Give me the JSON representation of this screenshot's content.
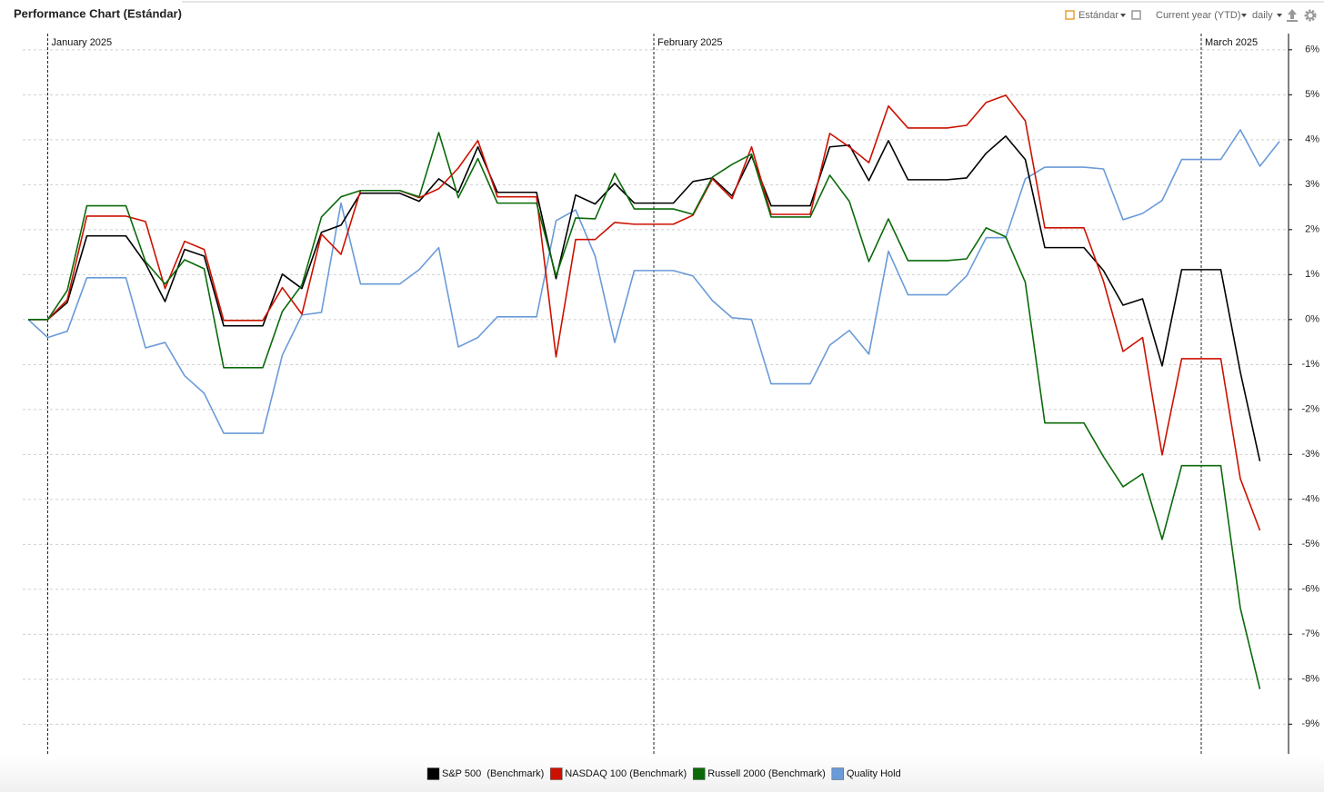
{
  "chart_data": {
    "type": "line",
    "title": "Performance Chart (Estándar)",
    "categories": [
      null,
      "January 2025",
      null,
      null,
      null,
      null,
      null,
      null,
      null,
      null,
      null,
      null,
      null,
      null,
      null,
      null,
      null,
      null,
      null,
      null,
      null,
      null,
      null,
      null,
      null,
      null,
      null,
      null,
      null,
      null,
      null,
      null,
      "February 2025",
      null,
      null,
      null,
      null,
      null,
      null,
      null,
      null,
      null,
      null,
      null,
      null,
      null,
      null,
      null,
      null,
      null,
      null,
      null,
      null,
      null,
      null,
      null,
      null,
      null,
      null,
      null,
      "March 2025",
      null,
      null,
      null,
      null
    ],
    "series": [
      {
        "name": "S&P 500  (Benchmark)",
        "color": "#000000",
        "values": [
          0,
          0,
          0.38,
          1.86,
          1.86,
          1.86,
          1.25,
          0.4,
          1.56,
          1.41,
          -0.14,
          -0.14,
          -0.14,
          1.01,
          0.69,
          1.94,
          2.1,
          2.81,
          2.81,
          2.81,
          2.63,
          3.13,
          2.83,
          3.84,
          2.83,
          2.83,
          2.83,
          0.91,
          2.77,
          2.57,
          3.03,
          2.59,
          2.59,
          2.59,
          3.07,
          3.15,
          2.75,
          3.64,
          2.53,
          2.53,
          2.53,
          3.84,
          3.88,
          3.09,
          3.98,
          3.11,
          3.11,
          3.11,
          3.15,
          3.7,
          4.08,
          3.56,
          1.6,
          1.6,
          1.6,
          1.09,
          0.32,
          0.46,
          -1.03,
          1.11,
          1.11,
          1.11,
          -1.17,
          -3.15,
          null
        ]
      },
      {
        "name": "NASDAQ 100 (Benchmark)",
        "color": "#cc1100",
        "values": [
          0,
          0,
          0.44,
          2.3,
          2.3,
          2.3,
          2.18,
          0.69,
          1.74,
          1.56,
          -0.02,
          -0.02,
          -0.02,
          0.71,
          0.12,
          1.9,
          1.45,
          2.87,
          2.87,
          2.87,
          2.71,
          2.91,
          3.37,
          3.98,
          2.73,
          2.73,
          2.73,
          -0.83,
          1.78,
          1.78,
          2.16,
          2.12,
          2.12,
          2.12,
          2.32,
          3.13,
          2.69,
          3.84,
          2.34,
          2.34,
          2.34,
          4.14,
          3.84,
          3.49,
          4.75,
          4.26,
          4.26,
          4.26,
          4.32,
          4.83,
          4.99,
          4.42,
          2.04,
          2.04,
          2.04,
          0.85,
          -0.71,
          -0.4,
          -3.01,
          -0.87,
          -0.87,
          -0.87,
          -3.54,
          -4.69,
          null
        ]
      },
      {
        "name": "Russell 2000 (Benchmark)",
        "color": "#0a6a0a",
        "values": [
          0,
          0,
          0.65,
          2.53,
          2.53,
          2.53,
          1.29,
          0.79,
          1.33,
          1.13,
          -1.07,
          -1.07,
          -1.07,
          0.18,
          0.77,
          2.28,
          2.73,
          2.87,
          2.87,
          2.87,
          2.73,
          4.16,
          2.71,
          3.58,
          2.59,
          2.59,
          2.59,
          0.97,
          2.26,
          2.24,
          3.25,
          2.46,
          2.46,
          2.46,
          2.34,
          3.17,
          3.45,
          3.68,
          2.28,
          2.28,
          2.28,
          3.21,
          2.63,
          1.29,
          2.24,
          1.31,
          1.31,
          1.31,
          1.35,
          2.04,
          1.84,
          0.83,
          -2.3,
          -2.3,
          -2.3,
          -3.05,
          -3.72,
          -3.43,
          -4.89,
          -3.25,
          -3.25,
          -3.25,
          -6.42,
          -8.22,
          null
        ]
      },
      {
        "name": "Quality Hold",
        "color": "#6a9bd8",
        "values": [
          0,
          -0.4,
          -0.26,
          0.93,
          0.93,
          0.93,
          -0.63,
          -0.51,
          -1.25,
          -1.64,
          -2.53,
          -2.53,
          -2.53,
          -0.79,
          0.1,
          0.16,
          2.59,
          0.79,
          0.79,
          0.79,
          1.11,
          1.6,
          -0.61,
          -0.4,
          0.06,
          0.06,
          0.06,
          2.2,
          2.44,
          1.41,
          -0.51,
          1.09,
          1.09,
          1.09,
          0.97,
          0.42,
          0.04,
          0,
          -1.43,
          -1.43,
          -1.43,
          -0.57,
          -0.24,
          -0.77,
          1.52,
          0.55,
          0.55,
          0.55,
          0.97,
          1.82,
          1.82,
          3.13,
          3.39,
          3.39,
          3.39,
          3.35,
          2.22,
          2.36,
          2.65,
          3.56,
          3.56,
          3.56,
          4.22,
          3.41,
          3.96
        ]
      }
    ],
    "ylim": [
      -9.66,
      6.36
    ],
    "yticks": [
      {
        "value": 6,
        "label": "6%"
      },
      {
        "value": 5,
        "label": "5%"
      },
      {
        "value": 4,
        "label": "4%"
      },
      {
        "value": 3,
        "label": "3%"
      },
      {
        "value": 2,
        "label": "2%"
      },
      {
        "value": 1,
        "label": "1%"
      },
      {
        "value": 0,
        "label": "0%"
      },
      {
        "value": -1,
        "label": "-1%"
      },
      {
        "value": -2,
        "label": "-2%"
      },
      {
        "value": -3,
        "label": "-3%"
      },
      {
        "value": -4,
        "label": "-4%"
      },
      {
        "value": -5,
        "label": "-5%"
      },
      {
        "value": -6,
        "label": "-6%"
      },
      {
        "value": -7,
        "label": "-7%"
      },
      {
        "value": -8,
        "label": "-8%"
      },
      {
        "value": -9,
        "label": "-9%"
      }
    ],
    "grid": true,
    "legend": "bottom"
  },
  "toolbar": {
    "view": "Estándar",
    "period": "Current year (YTD)",
    "interval": "daily"
  }
}
